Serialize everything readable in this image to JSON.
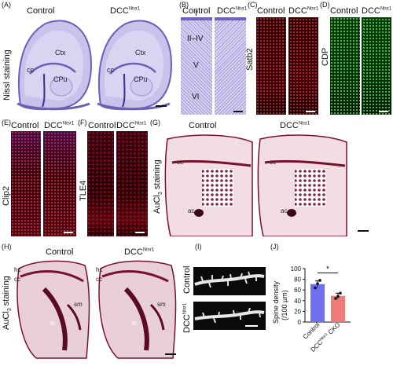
{
  "panels": {
    "A": {
      "label": "(A)",
      "ylabel": "Nissl staining",
      "col1": "Control",
      "col2": "DCC",
      "col2_sup": "Ntsr1",
      "regions": {
        "ctx": "Ctx",
        "cc": "cc",
        "cpu": "CPu"
      }
    },
    "B": {
      "label": "(B)",
      "col1": "Control",
      "col2": "DCC",
      "col2_sup": "Ntsr1",
      "layers": [
        "I",
        "II–IV",
        "V",
        "VI"
      ]
    },
    "C": {
      "label": "(C)",
      "col1": "Control",
      "col2": "DCC",
      "col2_sup": "Ntsr1",
      "ylabel": "Satb2"
    },
    "D": {
      "label": "(D)",
      "col1": "Control",
      "col2": "DCC",
      "col2_sup": "Ntsr1",
      "ylabel": "CDP"
    },
    "E": {
      "label": "(E)",
      "col1": "Control",
      "col2": "DCC",
      "col2_sup": "Ntsr1",
      "ylabel": "Clip2"
    },
    "F": {
      "label": "(F)",
      "col1": "Control",
      "col2": "DCC",
      "col2_sup": "Ntsr1",
      "ylabel": "TLE4"
    },
    "G": {
      "label": "(G)",
      "col1": "Control",
      "col2": "DCC",
      "col2_sup": "Ntsr1",
      "ylabel_main": "AuCl",
      "ylabel_sub": "3",
      "ylabel_tail": " staining",
      "annot": {
        "cc": "cc",
        "ac": "ac"
      }
    },
    "H": {
      "label": "(H)",
      "col1": "Control",
      "col2": "DCC",
      "col2_sup": "Ntsr1",
      "ylabel_main": "AuCl",
      "ylabel_sub": "3",
      "ylabel_tail": " staining",
      "annot": {
        "hc": "hc",
        "cc": "cc",
        "ic": "ic",
        "sm": "sm"
      }
    },
    "I": {
      "label": "(I)",
      "row1": "Control",
      "row2": "DCC",
      "row2_sup": "Ntsr1"
    },
    "J": {
      "label": "(J)"
    }
  },
  "colors": {
    "nissl": "#8b82c8",
    "satb2": "#c8102e",
    "cdp": "#2fa52f",
    "aucl": "#7a1030",
    "bar_control": "#6f6ff0",
    "bar_cko": "#f07a7a"
  },
  "chart_data": {
    "type": "bar",
    "categories": [
      "Control",
      "DCC Ntsr1 CKO"
    ],
    "category_labels": {
      "c1": "Control",
      "c2_pre": "DCC",
      "c2_sup": "Ntsr1",
      "c2_post": " CKO"
    },
    "values": [
      71,
      49
    ],
    "errors": [
      6,
      5
    ],
    "points": [
      [
        64,
        72,
        78
      ],
      [
        44,
        48,
        54
      ]
    ],
    "ylabel": "Spine density",
    "ylabel2": "(/100 µm)",
    "ylim": [
      0,
      100
    ],
    "yticks": [
      0,
      20,
      40,
      60,
      80,
      100
    ],
    "ytick_labels": [
      "0",
      "20",
      "40",
      "60",
      "80",
      "100"
    ],
    "significance": "*"
  }
}
